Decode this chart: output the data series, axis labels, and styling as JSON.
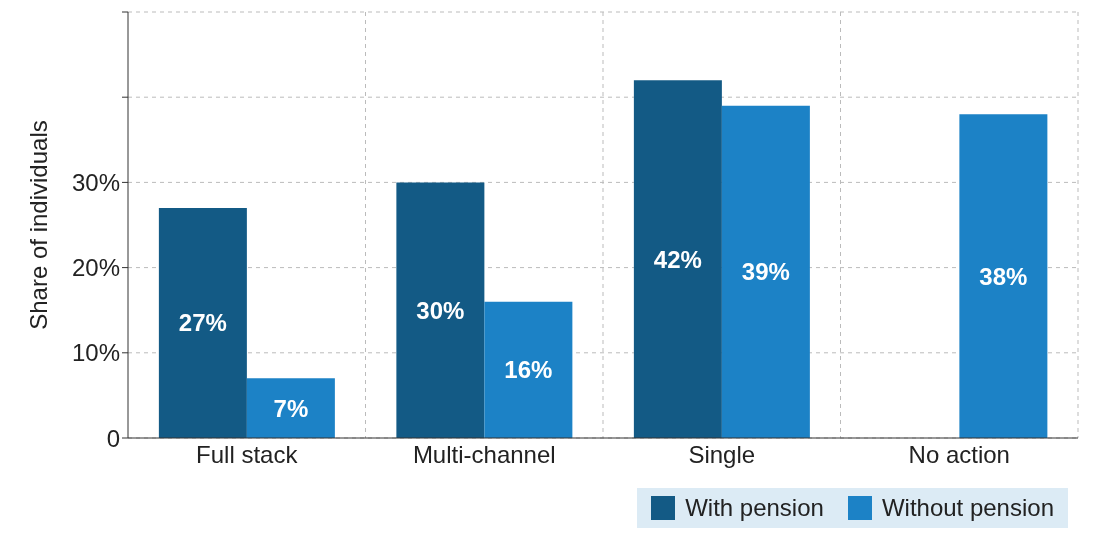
{
  "chart_data": {
    "type": "bar",
    "ylabel": "Share of individuals",
    "categories": [
      "Full stack",
      "Multi-channel",
      "Single",
      "No action"
    ],
    "series": [
      {
        "name": "With pension",
        "color": "#135a85",
        "values": [
          27,
          30,
          42,
          null
        ],
        "value_labels": [
          "27%",
          "30%",
          "42%",
          null
        ]
      },
      {
        "name": "Without pension",
        "color": "#1c82c6",
        "values": [
          7,
          16,
          39,
          38
        ],
        "value_labels": [
          "7%",
          "16%",
          "39%",
          "38%"
        ]
      }
    ],
    "ylim": [
      0,
      50
    ],
    "yticks": [
      {
        "value": 0,
        "label": "0"
      },
      {
        "value": 10,
        "label": "10%"
      },
      {
        "value": 20,
        "label": "20%"
      },
      {
        "value": 30,
        "label": "30%"
      },
      {
        "value": 40,
        "label": null
      },
      {
        "value": 50,
        "label": null
      }
    ],
    "grid": true,
    "legend": "bottom right"
  }
}
